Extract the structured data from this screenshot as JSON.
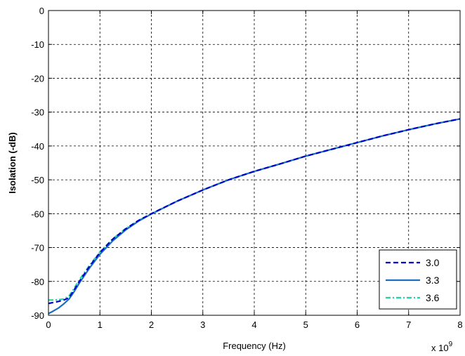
{
  "chart_data": {
    "type": "line",
    "title": "",
    "xlabel": "Frequency (Hz)",
    "ylabel": "Isolation (-dB)",
    "x_exponent_label": "x 10",
    "x_exponent_power": "9",
    "xlim": [
      0,
      8
    ],
    "ylim": [
      -90,
      0
    ],
    "x_ticks": [
      0,
      1,
      2,
      3,
      4,
      5,
      6,
      7,
      8
    ],
    "y_ticks": [
      0,
      -10,
      -20,
      -30,
      -40,
      -50,
      -60,
      -70,
      -80,
      -90
    ],
    "grid": true,
    "grid_style": "dashed",
    "legend_position": "bottom-right",
    "series": [
      {
        "name": "3.0",
        "color": "#0000cc",
        "dash": "dashed",
        "points": [
          [
            0,
            -86.5
          ],
          [
            0.1,
            -86.2
          ],
          [
            0.2,
            -85.9
          ],
          [
            0.3,
            -85.5
          ],
          [
            0.4,
            -84.8
          ],
          [
            0.5,
            -82.5
          ],
          [
            0.6,
            -80
          ],
          [
            0.8,
            -75.5
          ],
          [
            1,
            -71.5
          ],
          [
            1.25,
            -67.5
          ],
          [
            1.5,
            -64.5
          ],
          [
            1.75,
            -62
          ],
          [
            2,
            -60
          ],
          [
            2.5,
            -56.3
          ],
          [
            3,
            -53
          ],
          [
            3.5,
            -50
          ],
          [
            4,
            -47.5
          ],
          [
            4.5,
            -45.3
          ],
          [
            5,
            -43
          ],
          [
            5.5,
            -41
          ],
          [
            6,
            -39
          ],
          [
            6.5,
            -37
          ],
          [
            7,
            -35.2
          ],
          [
            7.5,
            -33.5
          ],
          [
            8,
            -32
          ]
        ]
      },
      {
        "name": "3.3",
        "color": "#1a6fbf",
        "dash": "solid",
        "points": [
          [
            0,
            -89.5
          ],
          [
            0.1,
            -88.7
          ],
          [
            0.2,
            -87.8
          ],
          [
            0.3,
            -86.6
          ],
          [
            0.4,
            -85.2
          ],
          [
            0.5,
            -83
          ],
          [
            0.6,
            -80.5
          ],
          [
            0.8,
            -76
          ],
          [
            1,
            -72
          ],
          [
            1.25,
            -68
          ],
          [
            1.5,
            -64.8
          ],
          [
            1.75,
            -62.2
          ],
          [
            2,
            -60.1
          ],
          [
            2.5,
            -56.3
          ],
          [
            3,
            -53
          ],
          [
            3.5,
            -50
          ],
          [
            4,
            -47.5
          ],
          [
            4.5,
            -45.3
          ],
          [
            5,
            -43
          ],
          [
            5.5,
            -41
          ],
          [
            6,
            -39
          ],
          [
            6.5,
            -37
          ],
          [
            7,
            -35.2
          ],
          [
            7.5,
            -33.5
          ],
          [
            8,
            -32
          ]
        ]
      },
      {
        "name": "3.6",
        "color": "#22d3a3",
        "dash": "dashdot",
        "points": [
          [
            0,
            -85.5
          ],
          [
            0.1,
            -85.5
          ],
          [
            0.2,
            -85.4
          ],
          [
            0.3,
            -85.2
          ],
          [
            0.4,
            -84.3
          ],
          [
            0.5,
            -82
          ],
          [
            0.6,
            -79.5
          ],
          [
            0.8,
            -75.2
          ],
          [
            1,
            -71.3
          ],
          [
            1.25,
            -67.4
          ],
          [
            1.5,
            -64.4
          ],
          [
            1.75,
            -62
          ],
          [
            2,
            -60
          ],
          [
            2.5,
            -56.3
          ],
          [
            3,
            -53
          ],
          [
            3.5,
            -50
          ],
          [
            4,
            -47.5
          ],
          [
            4.5,
            -45.3
          ],
          [
            5,
            -43
          ],
          [
            5.5,
            -41
          ],
          [
            6,
            -39
          ],
          [
            6.5,
            -37
          ],
          [
            7,
            -35.2
          ],
          [
            7.5,
            -33.5
          ],
          [
            8,
            -32
          ]
        ]
      }
    ]
  }
}
